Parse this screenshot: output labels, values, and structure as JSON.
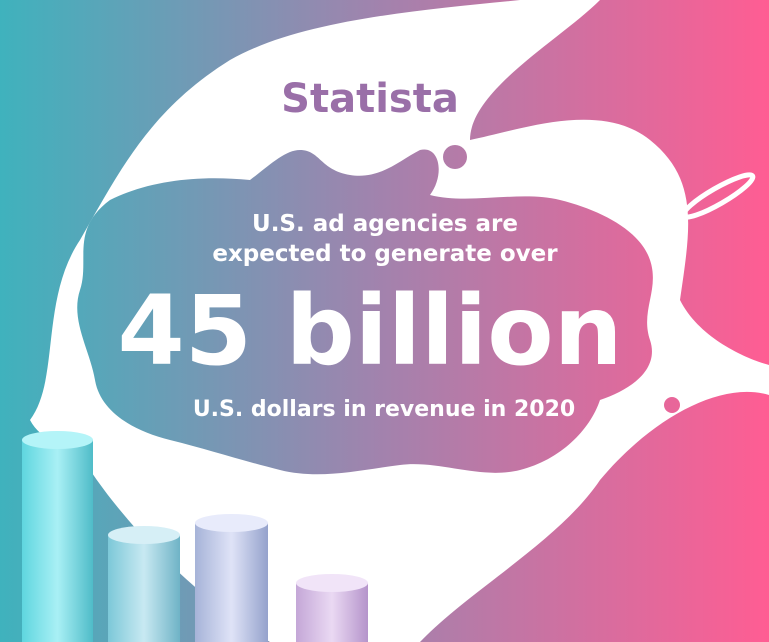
{
  "brand": "Statista",
  "headline": {
    "lines": [
      "U.S. ad agencies are",
      "expected to generate over"
    ]
  },
  "figure": "45 billion",
  "caption": "U.S. dollars in revenue in 2020"
}
